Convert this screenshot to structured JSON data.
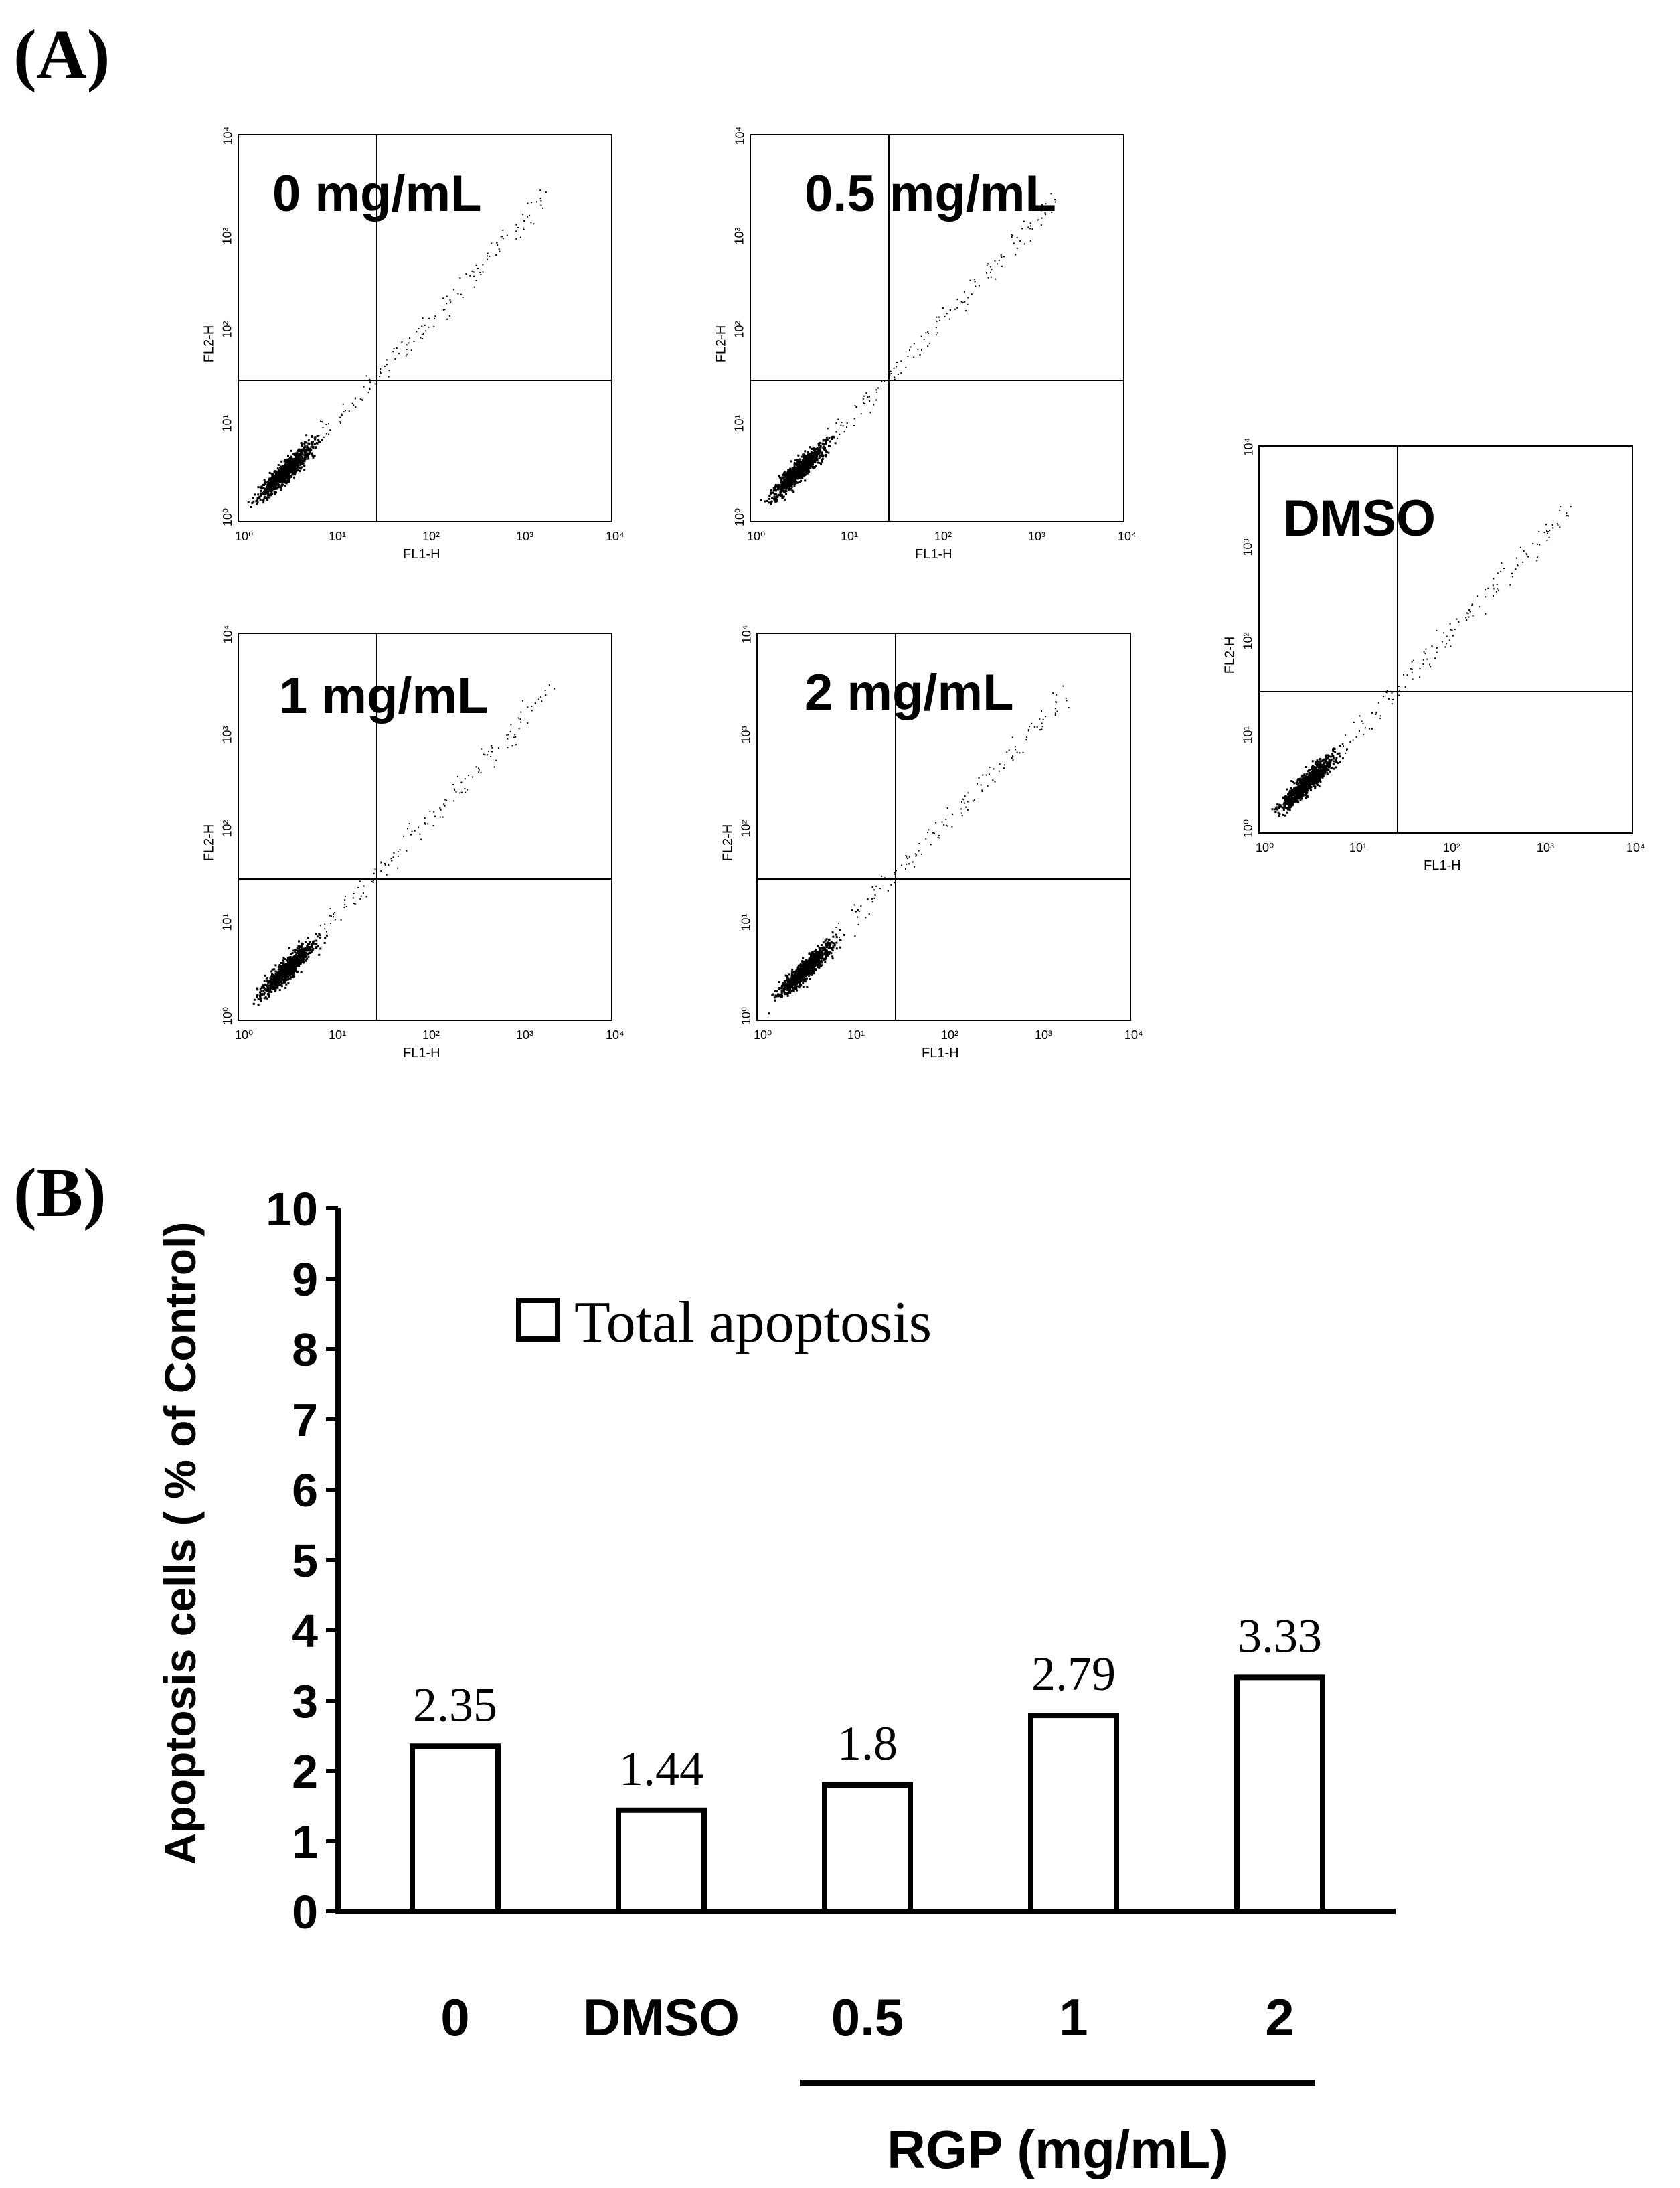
{
  "panel_a_label": "(A)",
  "panel_b_label": "(B)",
  "flow_plots": [
    {
      "title": "0 mg/mL",
      "xlabel": "FL1-H",
      "ylabel": "FL2-H",
      "ticks": [
        "10⁰",
        "10¹",
        "10²",
        "10³",
        "10⁴"
      ]
    },
    {
      "title": "0.5 mg/mL",
      "xlabel": "FL1-H",
      "ylabel": "FL2-H",
      "ticks": [
        "10⁰",
        "10¹",
        "10²",
        "10³",
        "10⁴"
      ]
    },
    {
      "title": "1 mg/mL",
      "xlabel": "FL1-H",
      "ylabel": "FL2-H",
      "ticks": [
        "10⁰",
        "10¹",
        "10²",
        "10³",
        "10⁴"
      ]
    },
    {
      "title": "2 mg/mL",
      "xlabel": "FL1-H",
      "ylabel": "FL2-H",
      "ticks": [
        "10⁰",
        "10¹",
        "10²",
        "10³",
        "10⁴"
      ]
    },
    {
      "title": "DMSO",
      "xlabel": "FL1-H",
      "ylabel": "FL2-H",
      "ticks": [
        "10⁰",
        "10¹",
        "10²",
        "10³",
        "10⁴"
      ]
    }
  ],
  "chart_data": {
    "type": "bar",
    "categories": [
      "0",
      "DMSO",
      "0.5",
      "1",
      "2"
    ],
    "values": [
      2.35,
      1.44,
      1.8,
      2.79,
      3.33
    ],
    "value_labels": [
      "2.35",
      "1.44",
      "1.8",
      "2.79",
      "3.33"
    ],
    "ylabel": "Apoptosis cells ( % of Control)",
    "ylim": [
      0,
      10
    ],
    "yticks": [
      "0",
      "1",
      "2",
      "3",
      "4",
      "5",
      "6",
      "7",
      "8",
      "9",
      "10"
    ],
    "legend": "Total apoptosis",
    "group_label": "RGP (mg/mL)"
  },
  "colors": {
    "bar_fill": "#ffffff",
    "bar_stroke": "#000000",
    "dot": "#000000"
  }
}
